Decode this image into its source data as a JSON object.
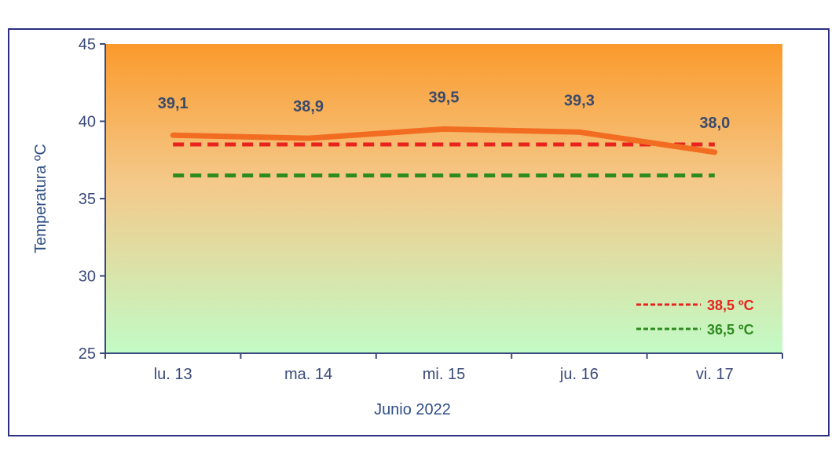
{
  "chart_data": {
    "type": "line",
    "categories": [
      "lu. 13",
      "ma. 14",
      "mi. 15",
      "ju. 16",
      "vi. 17"
    ],
    "series": [
      {
        "values": [
          39.1,
          38.9,
          39.5,
          39.3,
          38.0
        ],
        "labels": [
          "39,1",
          "38,9",
          "39,5",
          "39,3",
          "38,0"
        ],
        "color": "#f26d21"
      }
    ],
    "reference_lines": [
      {
        "name": "38,5 ºC",
        "value": 38.5,
        "color": "#e8231e",
        "style": "dashed"
      },
      {
        "name": "36,5 ºC",
        "value": 36.5,
        "color": "#2e8b1e",
        "style": "dashed"
      }
    ],
    "xlabel": "Junio 2022",
    "ylabel": "Temperatura ºC",
    "ylim": [
      25,
      45
    ],
    "yticks": [
      25,
      30,
      35,
      40,
      45
    ],
    "legend_position": "bottom-right",
    "background_gradient": [
      "#fb9a2c",
      "#c2fbc6"
    ],
    "axis_color": "#3a4a7a"
  }
}
